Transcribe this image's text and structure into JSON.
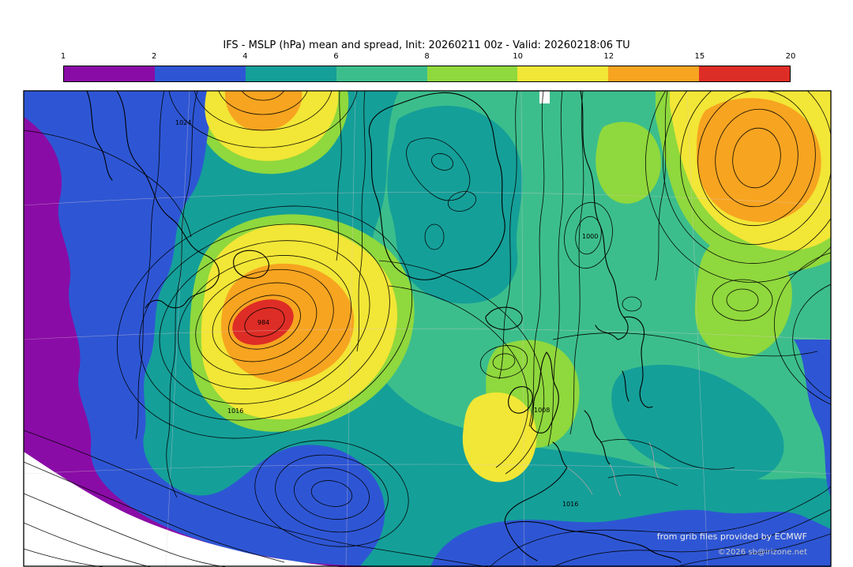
{
  "header": {
    "title": "IFS - MSLP (hPa) mean and spread, Init: 20260211 00z - Valid: 20260218:06 TU"
  },
  "colorbar": {
    "ticks": [
      "1",
      "2",
      "4",
      "6",
      "8",
      "10",
      "12",
      "15",
      "20"
    ],
    "segments": [
      {
        "range": "1-2",
        "color": "#8a0ca6"
      },
      {
        "range": "2-4",
        "color": "#2e56d4"
      },
      {
        "range": "4-6",
        "color": "#159f99"
      },
      {
        "range": "6-8",
        "color": "#3cbe8c"
      },
      {
        "range": "8-10",
        "color": "#8fd83d"
      },
      {
        "range": "10-12",
        "color": "#f2e636"
      },
      {
        "range": "12-15",
        "color": "#f7a420"
      },
      {
        "range": "15-20",
        "color": "#de2d26"
      }
    ]
  },
  "map": {
    "contour_labels": {
      "nw": "1024",
      "low_center": "984",
      "low_outer": "1016",
      "norway": "1000",
      "uk": "1008",
      "europe": "1016"
    },
    "attribution_line1": "from grib files provided by ECMWF",
    "attribution_line2": "©2026 sb@irizone.net"
  },
  "palette": {
    "purple": "#8a0ca6",
    "blue": "#2e56d4",
    "teal": "#159f99",
    "seagreen": "#3cbe8c",
    "green": "#8fd83d",
    "yellow": "#f2e636",
    "orange": "#f7a420",
    "red": "#de2d26"
  }
}
